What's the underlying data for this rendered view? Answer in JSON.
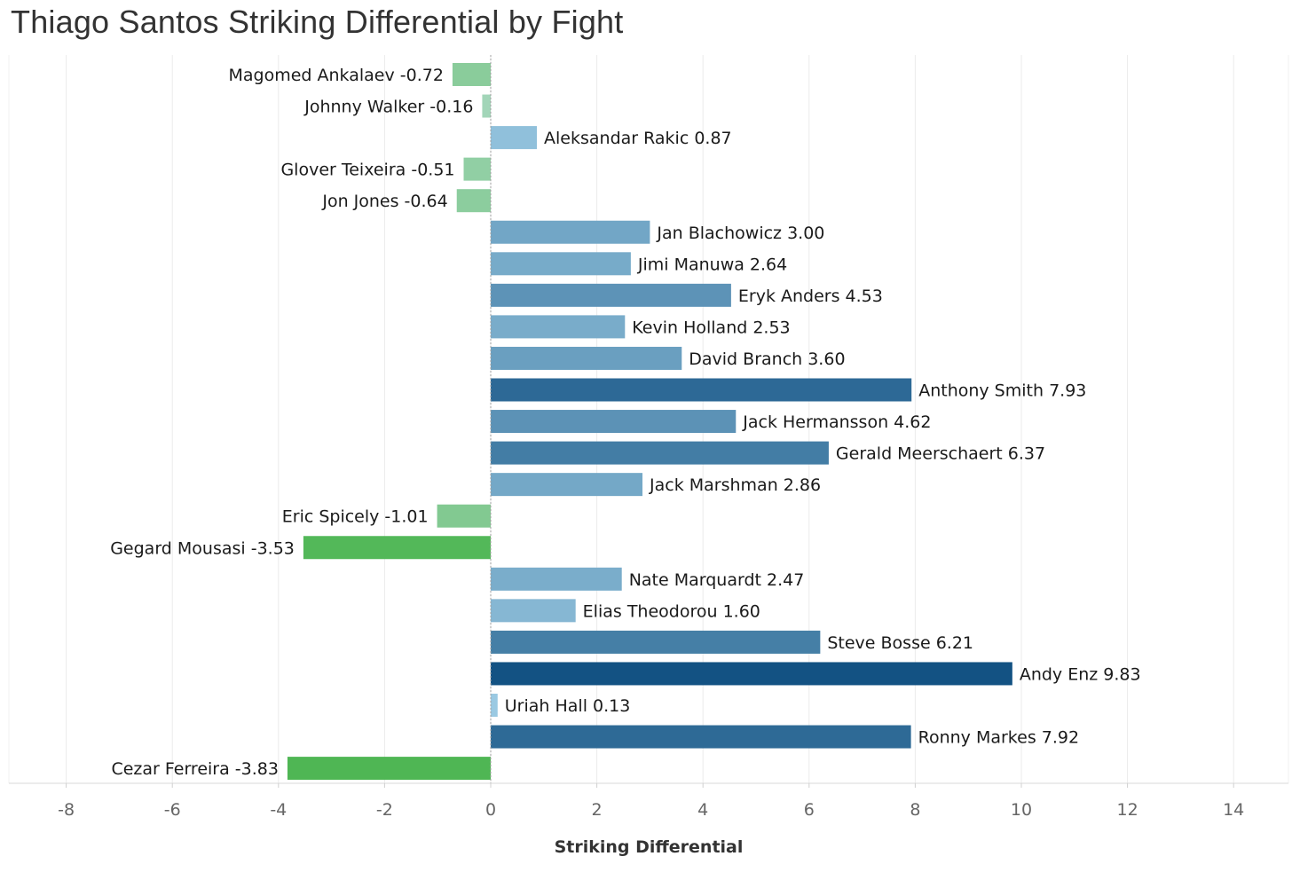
{
  "chart_data": {
    "type": "bar",
    "orientation": "horizontal",
    "title": "Thiago Santos Striking Differential by Fight",
    "xlabel": "Striking Differential",
    "ylabel": "",
    "xlim": [
      -9,
      15
    ],
    "x_ticks": [
      -8,
      -6,
      -4,
      -2,
      0,
      2,
      4,
      6,
      8,
      10,
      12,
      14
    ],
    "grid": true,
    "color_scale": {
      "negative": "#4fb654",
      "negative_light": "#b7ddd2",
      "positive_light": "#9ccbe3",
      "positive": "#135283"
    },
    "categories": [
      "Magomed Ankalaev",
      "Johnny Walker",
      "Aleksandar Rakic",
      "Glover Teixeira",
      "Jon Jones",
      "Jan Blachowicz",
      "Jimi Manuwa",
      "Eryk Anders",
      "Kevin Holland",
      "David Branch",
      "Anthony Smith",
      "Jack Hermansson",
      "Gerald Meerschaert",
      "Jack Marshman",
      "Eric Spicely",
      "Gegard Mousasi",
      "Nate Marquardt",
      "Elias Theodorou",
      "Steve Bosse",
      "Andy Enz",
      "Uriah Hall",
      "Ronny Markes",
      "Cezar Ferreira"
    ],
    "values": [
      -0.72,
      -0.16,
      0.87,
      -0.51,
      -0.64,
      3.0,
      2.64,
      4.53,
      2.53,
      3.6,
      7.93,
      4.62,
      6.37,
      2.86,
      -1.01,
      -3.53,
      2.47,
      1.6,
      6.21,
      9.83,
      0.13,
      7.92,
      -3.83
    ],
    "data_labels": [
      "Magomed Ankalaev -0.72",
      "Johnny Walker -0.16",
      "Aleksandar Rakic 0.87",
      "Glover Teixeira -0.51",
      "Jon Jones -0.64",
      "Jan Blachowicz 3.00",
      "Jimi Manuwa 2.64",
      "Eryk Anders 4.53",
      "Kevin Holland 2.53",
      "David Branch 3.60",
      "Anthony Smith 7.93",
      "Jack Hermansson 4.62",
      "Gerald Meerschaert 6.37",
      "Jack Marshman 2.86",
      "Eric Spicely -1.01",
      "Gegard Mousasi -3.53",
      "Nate Marquardt 2.47",
      "Elias Theodorou 1.60",
      "Steve Bosse 6.21",
      "Andy Enz 9.83",
      "Uriah Hall 0.13",
      "Ronny Markes 7.92",
      "Cezar Ferreira -3.83"
    ]
  }
}
